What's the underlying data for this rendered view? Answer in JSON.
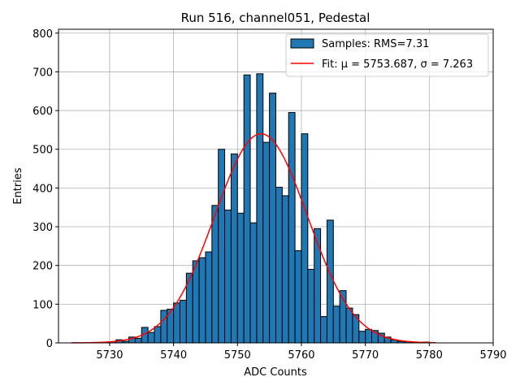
{
  "chart_data": {
    "type": "bar",
    "title": "Run 516, channel051, Pedestal",
    "xlabel": "ADC Counts",
    "ylabel": "Entries",
    "xlim": [
      5722,
      5790
    ],
    "ylim": [
      0,
      810
    ],
    "xticks": [
      5730,
      5740,
      5750,
      5760,
      5770,
      5780,
      5790
    ],
    "yticks": [
      0,
      100,
      200,
      300,
      400,
      500,
      600,
      700,
      800
    ],
    "grid": true,
    "legend_placement": "top-right",
    "histogram": {
      "name": "Samples: RMS=7.31",
      "color": "#1f77b4",
      "edge_color": "#000000",
      "bin_start": 5730,
      "bin_width": 1,
      "counts": [
        3,
        8,
        4,
        15,
        12,
        40,
        27,
        42,
        84,
        87,
        103,
        110,
        180,
        212,
        220,
        235,
        355,
        500,
        343,
        488,
        335,
        692,
        310,
        695,
        518,
        645,
        402,
        380,
        595,
        238,
        540,
        190,
        295,
        68,
        317,
        95,
        135,
        90,
        73,
        30,
        35,
        32,
        25,
        15,
        8,
        4,
        3,
        2,
        1,
        2
      ]
    },
    "fit": {
      "name": "Fit: μ = 5753.687, σ = 7.263",
      "color": "#ff0000",
      "mu": 5753.687,
      "sigma": 7.263,
      "amplitude": 540,
      "x_range": [
        5724,
        5781
      ]
    }
  }
}
